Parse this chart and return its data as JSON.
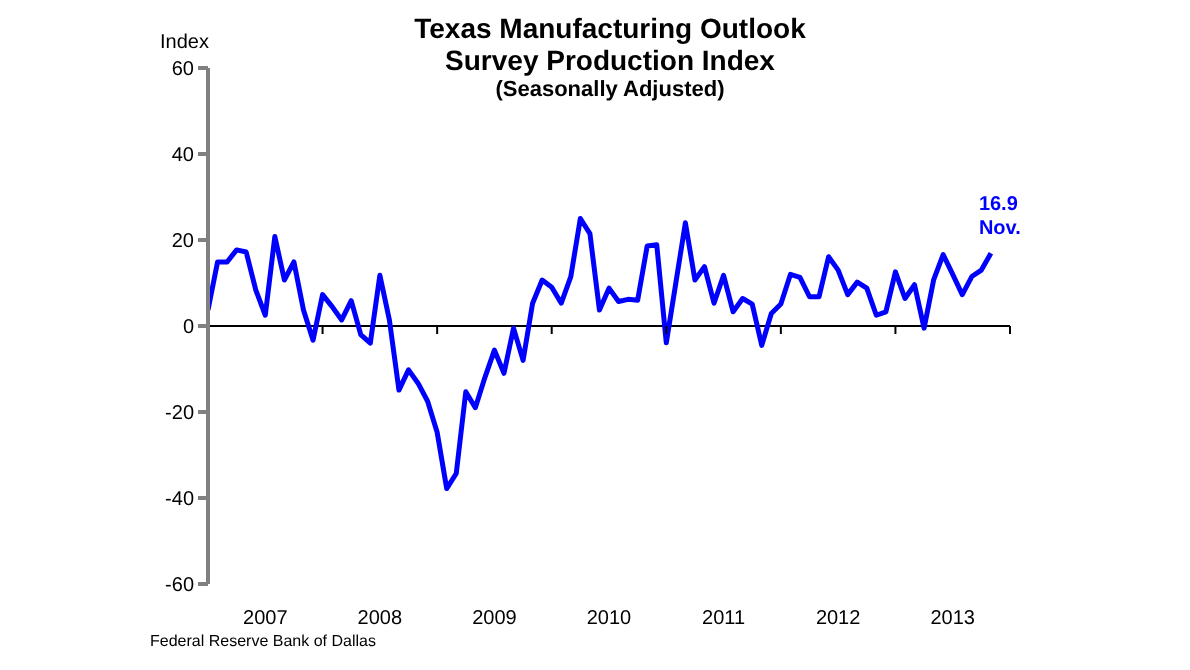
{
  "chart_data": {
    "type": "line",
    "title": "Texas Manufacturing Outlook Survey Production Index",
    "subtitle": "(Seasonally Adjusted)",
    "ylabel": "Index",
    "x": [
      "2007-01",
      "2007-02",
      "2007-03",
      "2007-04",
      "2007-05",
      "2007-06",
      "2007-07",
      "2007-08",
      "2007-09",
      "2007-10",
      "2007-11",
      "2007-12",
      "2008-01",
      "2008-02",
      "2008-03",
      "2008-04",
      "2008-05",
      "2008-06",
      "2008-07",
      "2008-08",
      "2008-09",
      "2008-10",
      "2008-11",
      "2008-12",
      "2009-01",
      "2009-02",
      "2009-03",
      "2009-04",
      "2009-05",
      "2009-06",
      "2009-07",
      "2009-08",
      "2009-09",
      "2009-10",
      "2009-11",
      "2009-12",
      "2010-01",
      "2010-02",
      "2010-03",
      "2010-04",
      "2010-05",
      "2010-06",
      "2010-07",
      "2010-08",
      "2010-09",
      "2010-10",
      "2010-11",
      "2010-12",
      "2011-01",
      "2011-02",
      "2011-03",
      "2011-04",
      "2011-05",
      "2011-06",
      "2011-07",
      "2011-08",
      "2011-09",
      "2011-10",
      "2011-11",
      "2011-12",
      "2012-01",
      "2012-02",
      "2012-03",
      "2012-04",
      "2012-05",
      "2012-06",
      "2012-07",
      "2012-08",
      "2012-09",
      "2012-10",
      "2012-11",
      "2012-12",
      "2013-01",
      "2013-02",
      "2013-03",
      "2013-04",
      "2013-05",
      "2013-06",
      "2013-07",
      "2013-08",
      "2013-09",
      "2013-10",
      "2013-11"
    ],
    "series": [
      {
        "color": "#0000ff",
        "values": [
          3.7,
          14.9,
          14.9,
          17.7,
          17.2,
          8.4,
          2.5,
          20.8,
          10.7,
          14.9,
          3.7,
          -3.3,
          7.3,
          4.5,
          1.4,
          5.9,
          -2.0,
          -4.0,
          11.8,
          1.4,
          -14.9,
          -10.2,
          -13.3,
          -17.5,
          -24.7,
          -37.8,
          -34.3,
          -15.3,
          -19.0,
          -12.0,
          -5.6,
          -11.0,
          -0.5,
          -8.0,
          5.3,
          10.7,
          9.0,
          5.3,
          11.5,
          25.0,
          21.5,
          3.7,
          8.8,
          5.7,
          6.2,
          6.0,
          18.6,
          18.9,
          -3.9,
          10.0,
          24.0,
          10.7,
          13.8,
          5.3,
          11.8,
          3.3,
          6.4,
          5.1,
          -4.5,
          2.9,
          5.1,
          12.0,
          11.3,
          6.8,
          6.8,
          16.1,
          13.0,
          7.3,
          10.2,
          8.8,
          2.5,
          3.3,
          12.6,
          6.4,
          9.6,
          -0.5,
          10.7,
          16.6,
          12.0,
          7.3,
          11.5,
          13.0,
          16.9
        ]
      }
    ],
    "xlim": [
      "2007-01",
      "2014-01"
    ],
    "xticks": [
      {
        "value": "2007-07",
        "label": "2007"
      },
      {
        "value": "2008-01",
        "label": null
      },
      {
        "value": "2008-07",
        "label": "2008"
      },
      {
        "value": "2009-01",
        "label": null
      },
      {
        "value": "2009-07",
        "label": "2009"
      },
      {
        "value": "2010-01",
        "label": null
      },
      {
        "value": "2010-07",
        "label": "2010"
      },
      {
        "value": "2011-01",
        "label": null
      },
      {
        "value": "2011-07",
        "label": "2011"
      },
      {
        "value": "2012-01",
        "label": null
      },
      {
        "value": "2012-07",
        "label": "2012"
      },
      {
        "value": "2013-01",
        "label": null
      },
      {
        "value": "2013-07",
        "label": "2013"
      },
      {
        "value": "2014-01",
        "label": null
      }
    ],
    "ylim": [
      -60,
      60
    ],
    "yticks": [
      -60,
      -40,
      -20,
      0,
      20,
      40,
      60
    ],
    "ref_lines": [
      {
        "axis": "y",
        "value": 0,
        "color": "#000000"
      }
    ],
    "legend": false,
    "marker": "none",
    "line_style": "solid",
    "annotations": [
      {
        "text": "16.9",
        "x": "2013-11",
        "y": 16.9
      },
      {
        "text": "Nov.",
        "x": "2013-11",
        "y": 16.9
      },
      "Federal Reserve Bank of Dallas"
    ]
  }
}
